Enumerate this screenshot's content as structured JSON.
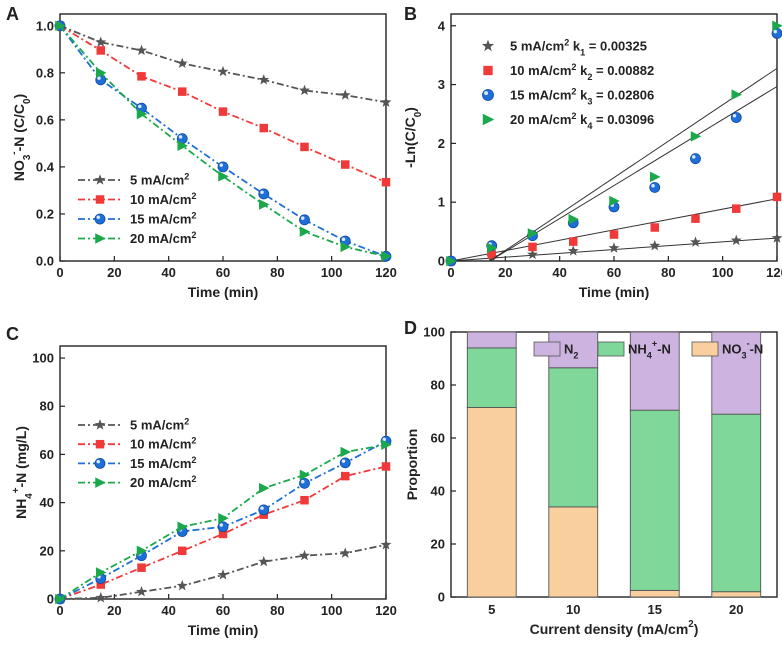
{
  "chart_data": [
    {
      "panel": "A",
      "type": "line",
      "xlabel": "Time (min)",
      "ylabel": {
        "a": "NO",
        "sub1": "3",
        "sup1": "-",
        "b": "-N (C/C",
        "sub2": "0",
        "c": ")"
      },
      "xlim": [
        0,
        120
      ],
      "ylim": [
        0,
        1.05
      ],
      "xticks": [
        0,
        20,
        40,
        60,
        80,
        100,
        120
      ],
      "yticks": [
        0.0,
        0.2,
        0.4,
        0.6,
        0.8,
        1.0
      ],
      "x": [
        0,
        15,
        30,
        45,
        60,
        75,
        90,
        105,
        120
      ],
      "legend_position": "bottom-left",
      "series": [
        {
          "name": "5 mA/cm²",
          "legend": {
            "text": "5 mA/cm",
            "sup": "2"
          },
          "color": "#555555",
          "marker": "star",
          "values": [
            1.0,
            0.93,
            0.895,
            0.84,
            0.805,
            0.77,
            0.725,
            0.705,
            0.675
          ]
        },
        {
          "name": "10 mA/cm²",
          "legend": {
            "text": "10 mA/cm",
            "sup": "2"
          },
          "color": "#f03a3a",
          "marker": "square",
          "values": [
            1.0,
            0.895,
            0.785,
            0.72,
            0.635,
            0.565,
            0.485,
            0.41,
            0.335
          ]
        },
        {
          "name": "15 mA/cm²",
          "legend": {
            "text": "15 mA/cm",
            "sup": "2"
          },
          "color": "#1f6fd8",
          "marker": "circle",
          "values": [
            1.0,
            0.77,
            0.65,
            0.52,
            0.4,
            0.285,
            0.175,
            0.085,
            0.02
          ]
        },
        {
          "name": "20 mA/cm²",
          "legend": {
            "text": "20 mA/cm",
            "sup": "2"
          },
          "color": "#1aa84a",
          "marker": "triangle",
          "values": [
            1.0,
            0.8,
            0.625,
            0.49,
            0.36,
            0.24,
            0.125,
            0.06,
            0.02
          ]
        }
      ]
    },
    {
      "panel": "B",
      "type": "scatter",
      "xlabel": "Time (min)",
      "ylabel": {
        "a": "-Ln(C/C",
        "sub": "0",
        "b": ")"
      },
      "xlim": [
        0,
        120
      ],
      "ylim": [
        0,
        4.2
      ],
      "xticks": [
        0,
        20,
        40,
        60,
        80,
        100,
        120
      ],
      "yticks": [
        0,
        1,
        2,
        3,
        4
      ],
      "x": [
        0,
        15,
        30,
        45,
        60,
        75,
        90,
        105,
        120
      ],
      "legend_position": "top-left",
      "series": [
        {
          "name": "5 mA/cm² k1 = 0.00325",
          "legend": {
            "a": "5 mA/cm",
            "sup": "2",
            "b": " k",
            "sub": "1",
            "c": " = 0.00325"
          },
          "color": "#555555",
          "marker": "star",
          "values": [
            0,
            0.07,
            0.11,
            0.17,
            0.22,
            0.26,
            0.32,
            0.35,
            0.39
          ],
          "fit": {
            "slope": 0.00325,
            "intercept": 0,
            "x": [
              0,
              120
            ]
          }
        },
        {
          "name": "10 mA/cm² k2 = 0.00882",
          "legend": {
            "a": "10 mA/cm",
            "sup": "2",
            "b": " k",
            "sub": "2",
            "c": " = 0.00882"
          },
          "color": "#f03a3a",
          "marker": "square",
          "values": [
            0,
            0.11,
            0.24,
            0.33,
            0.45,
            0.57,
            0.72,
            0.89,
            1.09
          ],
          "fit": {
            "slope": 0.00882,
            "intercept": 0,
            "x": [
              0,
              120
            ]
          }
        },
        {
          "name": "15 mA/cm² k3 = 0.02806",
          "legend": {
            "a": "15 mA/cm",
            "sup": "2",
            "b": " k",
            "sub": "3",
            "c": " = 0.02806"
          },
          "color": "#1f6fd8",
          "marker": "circle",
          "values": [
            0,
            0.26,
            0.43,
            0.65,
            0.92,
            1.25,
            1.74,
            2.44,
            3.87
          ],
          "fit": {
            "slope": 0.02806,
            "intercept": -0.4,
            "x": [
              14.3,
              120
            ]
          }
        },
        {
          "name": "20 mA/cm² k4 = 0.03096",
          "legend": {
            "a": "20 mA/cm",
            "sup": "2",
            "b": " k",
            "sub": "4",
            "c": " = 0.03096"
          },
          "color": "#1aa84a",
          "marker": "triangle",
          "values": [
            0,
            0.22,
            0.47,
            0.71,
            1.02,
            1.43,
            2.12,
            2.83,
            4.0
          ],
          "fit": {
            "slope": 0.03096,
            "intercept": -0.44,
            "x": [
              14.2,
              120
            ]
          }
        }
      ]
    },
    {
      "panel": "C",
      "type": "line",
      "xlabel": "Time (min)",
      "ylabel": {
        "a": "NH",
        "sub1": "4",
        "sup1": "+",
        "b": "-N (mg/L)"
      },
      "xlim": [
        0,
        120
      ],
      "ylim": [
        0,
        105
      ],
      "xticks": [
        0,
        20,
        40,
        60,
        80,
        100,
        120
      ],
      "yticks": [
        0,
        20,
        40,
        60,
        80,
        100
      ],
      "x": [
        0,
        15,
        30,
        45,
        60,
        75,
        90,
        105,
        120
      ],
      "legend_position": "top-left",
      "series": [
        {
          "name": "5 mA/cm²",
          "legend": {
            "text": "5 mA/cm",
            "sup": "2"
          },
          "color": "#555555",
          "marker": "star",
          "values": [
            0,
            0.5,
            3.0,
            5.5,
            10.0,
            15.5,
            18.0,
            19.0,
            22.5
          ]
        },
        {
          "name": "10 mA/cm²",
          "legend": {
            "text": "10 mA/cm",
            "sup": "2"
          },
          "color": "#f03a3a",
          "marker": "square",
          "values": [
            0,
            6.0,
            13.0,
            20.0,
            27.0,
            35.0,
            41.0,
            51.0,
            55.0
          ]
        },
        {
          "name": "15 mA/cm²",
          "legend": {
            "text": "15 mA/cm",
            "sup": "2"
          },
          "color": "#1f6fd8",
          "marker": "circle",
          "values": [
            0,
            8.5,
            18.0,
            28.0,
            30.0,
            37.0,
            48.0,
            56.5,
            65.5
          ]
        },
        {
          "name": "20 mA/cm²",
          "legend": {
            "text": "20 mA/cm",
            "sup": "2"
          },
          "color": "#1aa84a",
          "marker": "triangle",
          "values": [
            0,
            11.0,
            20.0,
            30.0,
            33.5,
            46.0,
            51.5,
            61.0,
            64.0
          ]
        }
      ]
    },
    {
      "panel": "D",
      "type": "bar",
      "stacked": true,
      "xlabel": {
        "a": "Current density (mA/cm",
        "sup": "2",
        "b": ")"
      },
      "ylabel": "Proportion",
      "ylim": [
        0,
        100
      ],
      "yticks": [
        0,
        20,
        40,
        60,
        80,
        100
      ],
      "categories": [
        "5",
        "10",
        "15",
        "20"
      ],
      "legend_position": "top",
      "series": [
        {
          "name": "NO3--N",
          "legend": {
            "a": "NO",
            "sub": "3",
            "sup": "-",
            "b": "-N"
          },
          "color": "#f9cf9f",
          "values": [
            71.5,
            34.0,
            2.5,
            2.0
          ]
        },
        {
          "name": "NH4+-N",
          "legend": {
            "a": "NH",
            "sub": "4",
            "sup": "+",
            "b": "-N"
          },
          "color": "#7fd89a",
          "values": [
            22.5,
            52.5,
            68.0,
            67.0
          ]
        },
        {
          "name": "N2",
          "legend": {
            "a": "N",
            "sub": "2",
            "sup": "",
            "b": ""
          },
          "color": "#cdb3e0",
          "values": [
            6.0,
            13.5,
            29.5,
            31.0
          ]
        }
      ]
    }
  ]
}
